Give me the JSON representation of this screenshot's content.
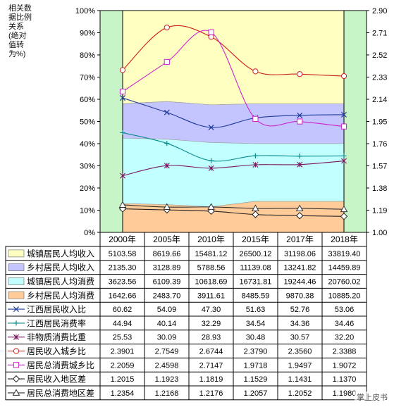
{
  "chart_data": {
    "type": "area",
    "y_title": "相关数据比例关系(绝对值转为%)",
    "categories": [
      "2000年",
      "2005年",
      "2010年",
      "2015年",
      "2017年",
      "2018年"
    ],
    "left_axis": {
      "ylim": [
        0,
        100
      ],
      "ticks": [
        "0%",
        "10%",
        "20%",
        "30%",
        "40%",
        "50%",
        "60%",
        "70%",
        "80%",
        "90%",
        "100%"
      ]
    },
    "right_axis": {
      "ylim": [
        1.0,
        2.9
      ],
      "ticks": [
        "1.00",
        "1.19",
        "1.38",
        "1.57",
        "1.76",
        "1.95",
        "2.14",
        "2.33",
        "2.52",
        "2.71",
        "2.90"
      ]
    },
    "table": [
      {
        "label": "城镇居民人均收入",
        "values": [
          "5103.58",
          "8619.66",
          "15481.12",
          "26500.12",
          "31198.06",
          "33819.40"
        ]
      },
      {
        "label": "乡村居民人均收入",
        "values": [
          "2135.30",
          "3128.89",
          "5788.56",
          "11139.08",
          "13241.82",
          "14459.89"
        ]
      },
      {
        "label": "城镇居民人均消费",
        "values": [
          "3623.56",
          "6109.39",
          "10618.69",
          "16731.81",
          "19244.46",
          "20760.02"
        ]
      },
      {
        "label": "乡村居民人均消费",
        "values": [
          "1642.66",
          "2483.70",
          "3911.61",
          "8485.59",
          "9870.38",
          "10885.20"
        ]
      },
      {
        "label": "江西居民收入比",
        "values": [
          "60.62",
          "54.09",
          "47.30",
          "51.63",
          "52.76",
          "53.06"
        ]
      },
      {
        "label": "江西居民消费率",
        "values": [
          "44.94",
          "40.14",
          "32.29",
          "34.54",
          "34.36",
          "34.46"
        ]
      },
      {
        "label": "非物质消费比重",
        "values": [
          "25.53",
          "30.09",
          "28.93",
          "30.48",
          "30.57",
          "32.20"
        ]
      },
      {
        "label": "居民收入城乡比",
        "values": [
          "2.3901",
          "2.7549",
          "2.6744",
          "2.3790",
          "2.3560",
          "2.3388"
        ]
      },
      {
        "label": "居民总消费城乡比",
        "values": [
          "2.2059",
          "2.4598",
          "2.7147",
          "1.9718",
          "1.9497",
          "1.9072"
        ]
      },
      {
        "label": "居民收入地区差",
        "values": [
          "1.2015",
          "1.1923",
          "1.1819",
          "1.1529",
          "1.1431",
          "1.1370"
        ]
      },
      {
        "label": "居民总消费地区差",
        "values": [
          "1.2354",
          "1.2168",
          "1.2176",
          "1.2057",
          "1.2052",
          "1.1980"
        ]
      }
    ],
    "areas": [
      {
        "name": "城镇居民人均收入",
        "color": "#ffffc2",
        "values": [
          100,
          100,
          100,
          100,
          100,
          100
        ]
      },
      {
        "name": "乡村居民人均收入",
        "color": "#c4c4ff",
        "values": [
          58,
          59,
          57.5,
          58,
          58,
          58
        ]
      },
      {
        "name": "城镇居民人均消费",
        "color": "#c2ffff",
        "values": [
          42.5,
          42,
          40.5,
          40,
          40,
          40
        ]
      },
      {
        "name": "乡村居民人均消费",
        "color": "#ffcc99",
        "values": [
          13,
          12.5,
          11.5,
          14,
          14,
          14
        ]
      }
    ],
    "lines_pct": [
      {
        "name": "江西居民收入比",
        "color": "#1f3b9a",
        "marker": "x",
        "values": [
          60.62,
          54.09,
          47.3,
          51.63,
          52.76,
          53.06
        ]
      },
      {
        "name": "江西居民消费率",
        "color": "#0b8a8a",
        "marker": "plus",
        "values": [
          44.94,
          40.14,
          32.29,
          34.54,
          34.36,
          34.46
        ]
      },
      {
        "name": "非物质消费比重",
        "color": "#7a1560",
        "marker": "star",
        "values": [
          25.53,
          30.09,
          28.93,
          30.48,
          30.57,
          32.2
        ]
      }
    ],
    "lines_ratio": [
      {
        "name": "居民收入城乡比",
        "color": "#cc1f1f",
        "marker": "circle",
        "values": [
          2.3901,
          2.7549,
          2.6744,
          2.379,
          2.356,
          2.3388
        ]
      },
      {
        "name": "居民总消费城乡比",
        "color": "#cc22cc",
        "marker": "square",
        "values": [
          2.2059,
          2.4598,
          2.7147,
          1.9718,
          1.9497,
          1.9072
        ]
      },
      {
        "name": "居民收入地区差",
        "color": "#222222",
        "marker": "diamond",
        "values": [
          1.2015,
          1.1923,
          1.1819,
          1.1529,
          1.1431,
          1.137
        ]
      },
      {
        "name": "居民总消费地区差",
        "color": "#333333",
        "marker": "triangle",
        "values": [
          1.2354,
          1.2168,
          1.2176,
          1.2057,
          1.2052,
          1.198
        ]
      }
    ],
    "colors": {
      "side_bg": "#c8f5c8",
      "table_border": "#000000",
      "axis_text": "#000000"
    }
  },
  "watermark": "掌上皮书"
}
